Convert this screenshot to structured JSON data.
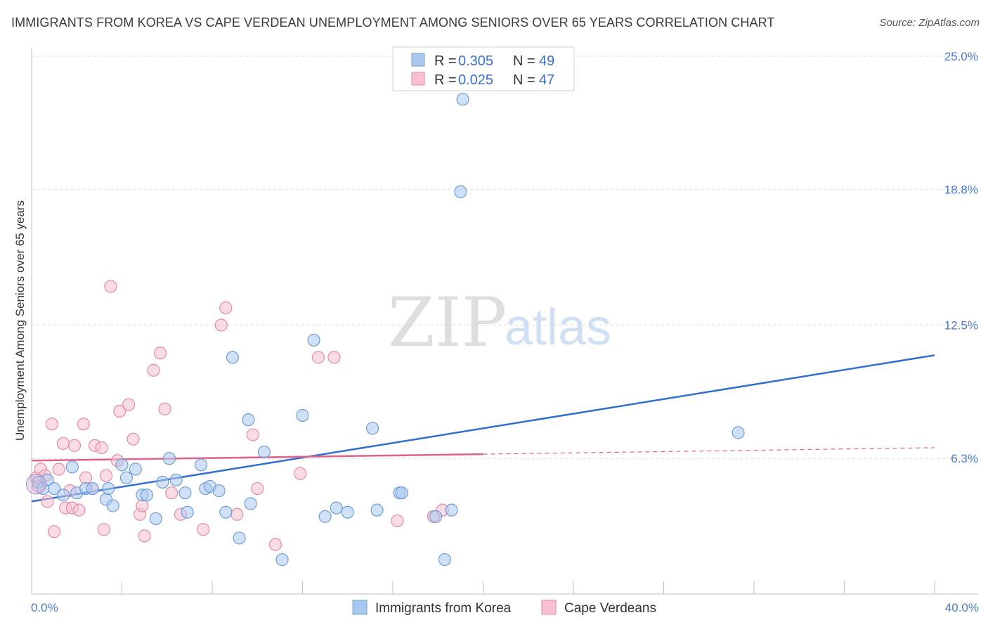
{
  "header": {
    "title": "IMMIGRANTS FROM KOREA VS CAPE VERDEAN UNEMPLOYMENT AMONG SENIORS OVER 65 YEARS CORRELATION CHART",
    "source": "Source: ZipAtlas.com"
  },
  "watermark": {
    "zip": "ZIP",
    "atlas": "atlas"
  },
  "colors": {
    "korea_fill": "#aac8ee",
    "korea_stroke": "#6f9edb",
    "korea_line": "#2f6fcf",
    "cape_fill": "#f6c0d0",
    "cape_stroke": "#e58aa8",
    "cape_line": "#e0628a",
    "grid": "#d9d9d9",
    "tick_label": "#4a7bd0"
  },
  "legend": {
    "rows": [
      {
        "r_label": "R = ",
        "r_value": "0.305",
        "n_label": "N = ",
        "n_value": "49"
      },
      {
        "r_label": "R = ",
        "r_value": "0.025",
        "n_label": "N = ",
        "n_value": "47"
      }
    ]
  },
  "chart_data": {
    "type": "scatter",
    "title": "IMMIGRANTS FROM KOREA VS CAPE VERDEAN UNEMPLOYMENT AMONG SENIORS OVER 65 YEARS CORRELATION CHART",
    "xlabel": "",
    "ylabel": "Unemployment Among Seniors over 65 years",
    "xlim": [
      0,
      40
    ],
    "ylim": [
      0,
      25
    ],
    "x_tick_labels": [
      {
        "value": 0,
        "label": "0.0%"
      },
      {
        "value": 40,
        "label": "40.0%"
      }
    ],
    "y_tick_labels": [
      {
        "value": 6.3,
        "label": "6.3%"
      },
      {
        "value": 12.5,
        "label": "12.5%"
      },
      {
        "value": 18.8,
        "label": "18.8%"
      },
      {
        "value": 25.0,
        "label": "25.0%"
      }
    ],
    "grid": true,
    "legend_position": "top-center",
    "series": [
      {
        "name": "Immigrants from Korea",
        "color": "#6f9edb",
        "R": 0.305,
        "N": 49,
        "trend": {
          "x": [
            0,
            40
          ],
          "y": [
            4.3,
            11.1
          ]
        },
        "points": [
          [
            0.3,
            5.2
          ],
          [
            0.5,
            4.9
          ],
          [
            0.7,
            5.3
          ],
          [
            1.0,
            4.9
          ],
          [
            1.4,
            4.6
          ],
          [
            1.8,
            5.9
          ],
          [
            2.0,
            4.7
          ],
          [
            2.4,
            4.9
          ],
          [
            2.7,
            4.9
          ],
          [
            3.3,
            4.4
          ],
          [
            3.4,
            4.9
          ],
          [
            3.6,
            4.1
          ],
          [
            4.0,
            6.0
          ],
          [
            4.2,
            5.4
          ],
          [
            4.6,
            5.8
          ],
          [
            4.9,
            4.6
          ],
          [
            5.1,
            4.6
          ],
          [
            5.5,
            3.5
          ],
          [
            5.8,
            5.2
          ],
          [
            6.1,
            6.3
          ],
          [
            6.4,
            5.3
          ],
          [
            6.8,
            4.7
          ],
          [
            6.9,
            3.8
          ],
          [
            7.5,
            6.0
          ],
          [
            7.7,
            4.9
          ],
          [
            7.9,
            5.0
          ],
          [
            8.3,
            4.8
          ],
          [
            8.6,
            3.8
          ],
          [
            8.9,
            11.0
          ],
          [
            9.2,
            2.6
          ],
          [
            9.6,
            8.1
          ],
          [
            9.7,
            4.2
          ],
          [
            10.3,
            6.6
          ],
          [
            11.1,
            1.6
          ],
          [
            12.0,
            8.3
          ],
          [
            12.5,
            11.8
          ],
          [
            13.0,
            3.6
          ],
          [
            13.5,
            4.0
          ],
          [
            14.0,
            3.8
          ],
          [
            15.1,
            7.7
          ],
          [
            15.3,
            3.9
          ],
          [
            16.3,
            4.7
          ],
          [
            16.4,
            4.7
          ],
          [
            17.9,
            3.6
          ],
          [
            18.3,
            1.6
          ],
          [
            18.6,
            3.9
          ],
          [
            19.1,
            23.0
          ],
          [
            19.0,
            18.7
          ],
          [
            31.3,
            7.5
          ]
        ]
      },
      {
        "name": "Cape Verdeans",
        "color": "#e58aa8",
        "R": 0.025,
        "N": 47,
        "trend": {
          "x": [
            0,
            40
          ],
          "y": [
            6.2,
            6.8
          ]
        },
        "trend_solid_until_x": 20,
        "points": [
          [
            0.2,
            5.4
          ],
          [
            0.3,
            5.0
          ],
          [
            0.4,
            5.8
          ],
          [
            0.6,
            5.5
          ],
          [
            0.7,
            4.3
          ],
          [
            0.9,
            7.9
          ],
          [
            1.0,
            2.9
          ],
          [
            1.2,
            5.8
          ],
          [
            1.4,
            7.0
          ],
          [
            1.5,
            4.0
          ],
          [
            1.7,
            4.8
          ],
          [
            1.8,
            4.0
          ],
          [
            1.9,
            6.9
          ],
          [
            2.1,
            3.9
          ],
          [
            2.3,
            7.9
          ],
          [
            2.4,
            5.4
          ],
          [
            2.7,
            4.9
          ],
          [
            2.8,
            6.9
          ],
          [
            3.1,
            6.8
          ],
          [
            3.2,
            3.0
          ],
          [
            3.3,
            5.5
          ],
          [
            3.5,
            14.3
          ],
          [
            3.8,
            6.2
          ],
          [
            3.9,
            8.5
          ],
          [
            4.3,
            8.8
          ],
          [
            4.5,
            7.2
          ],
          [
            4.8,
            3.7
          ],
          [
            4.9,
            4.1
          ],
          [
            5.0,
            2.7
          ],
          [
            5.4,
            10.4
          ],
          [
            5.7,
            11.2
          ],
          [
            5.9,
            8.6
          ],
          [
            6.2,
            4.7
          ],
          [
            6.6,
            3.7
          ],
          [
            7.6,
            3.0
          ],
          [
            8.4,
            12.5
          ],
          [
            8.6,
            13.3
          ],
          [
            9.1,
            3.7
          ],
          [
            9.8,
            7.4
          ],
          [
            10.0,
            4.9
          ],
          [
            10.8,
            2.3
          ],
          [
            11.9,
            5.6
          ],
          [
            12.7,
            11.0
          ],
          [
            13.4,
            11.0
          ],
          [
            16.2,
            3.4
          ],
          [
            17.8,
            3.6
          ],
          [
            18.2,
            3.9
          ]
        ]
      }
    ]
  }
}
